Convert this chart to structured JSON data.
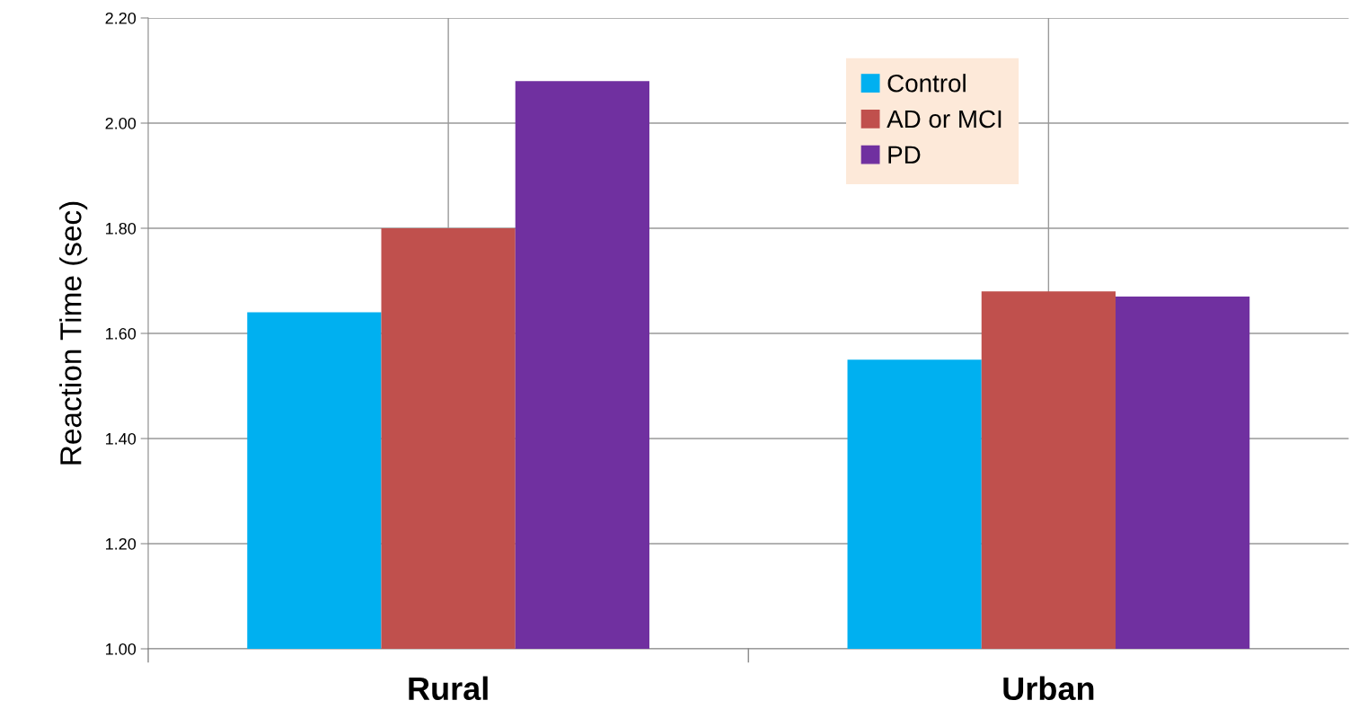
{
  "chart_data": {
    "type": "bar",
    "ylabel": "Reaction Time (sec)",
    "categories": [
      "Rural",
      "Urban"
    ],
    "series": [
      {
        "name": "Control",
        "color": "#00b0f0",
        "values": [
          1.64,
          1.55
        ]
      },
      {
        "name": "AD or MCI",
        "color": "#c0504d",
        "values": [
          1.8,
          1.68
        ]
      },
      {
        "name": "PD",
        "color": "#7030a0",
        "values": [
          2.08,
          1.67
        ]
      }
    ],
    "ylim": [
      1.0,
      2.2
    ],
    "yticks": [
      {
        "value": 1.0,
        "label": "1.00"
      },
      {
        "value": 1.2,
        "label": "1.20"
      },
      {
        "value": 1.4,
        "label": "1.40"
      },
      {
        "value": 1.6,
        "label": "1.60"
      },
      {
        "value": 1.8,
        "label": "1.80"
      },
      {
        "value": 2.0,
        "label": "2.00"
      },
      {
        "value": 2.2,
        "label": "2.20"
      }
    ],
    "grid": true,
    "legend": "top right"
  }
}
